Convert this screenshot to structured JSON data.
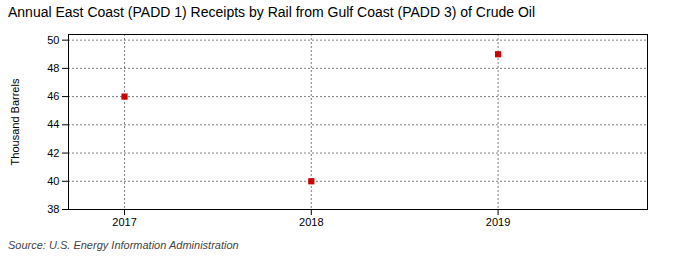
{
  "chart_data": {
    "type": "scatter",
    "title": "Annual East Coast (PADD 1) Receipts by Rail from Gulf Coast (PADD 3) of Crude Oil",
    "ylabel": "Thousand Barrels",
    "source": "Source: U.S. Energy Information Administration",
    "x": [
      2017,
      2018,
      2019
    ],
    "values": [
      46,
      40,
      49
    ],
    "color": "#cc0000",
    "marker": "square",
    "xlim": [
      2016.7,
      2019.8
    ],
    "ylim": [
      38,
      50.4
    ],
    "xticks": [
      2017,
      2018,
      2019
    ],
    "yticks": [
      38,
      40,
      42,
      44,
      46,
      48,
      50
    ],
    "grid": true
  }
}
